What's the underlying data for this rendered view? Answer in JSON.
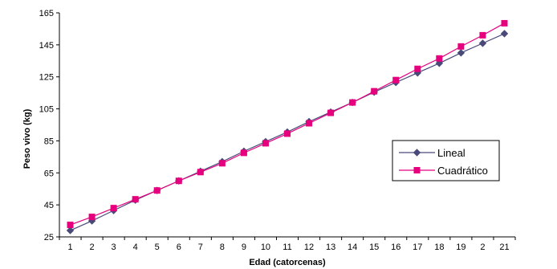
{
  "chart_data": {
    "type": "line",
    "title": "",
    "xlabel": "Edad (catorcenas)",
    "ylabel": "Peso vivo (kg)",
    "categories": [
      "1",
      "2",
      "3",
      "4",
      "5",
      "6",
      "7",
      "8",
      "9",
      "10",
      "11",
      "12",
      "13",
      "14",
      "15",
      "16",
      "17",
      "18",
      "19",
      "2",
      "21"
    ],
    "ylim": [
      25,
      165
    ],
    "yticks": [
      25,
      45,
      65,
      85,
      105,
      125,
      145,
      165
    ],
    "grid": false,
    "legend_position": "right",
    "series": [
      {
        "name": "Lineal",
        "color": "#4a4a7a",
        "marker": "diamond",
        "values": [
          29,
          35,
          41.5,
          48,
          54,
          60,
          66,
          72,
          78.5,
          84.5,
          90.5,
          97,
          103,
          109,
          115.5,
          121.5,
          127.5,
          133.5,
          140,
          146,
          152
        ]
      },
      {
        "name": "Cuadrático",
        "color": "#e6007e",
        "marker": "square",
        "values": [
          32.5,
          37.5,
          43,
          48.5,
          54,
          60,
          65.5,
          71,
          77.5,
          83.5,
          89.5,
          96,
          102.5,
          109,
          116,
          123,
          130,
          136.5,
          144,
          151,
          158.5
        ]
      }
    ]
  }
}
